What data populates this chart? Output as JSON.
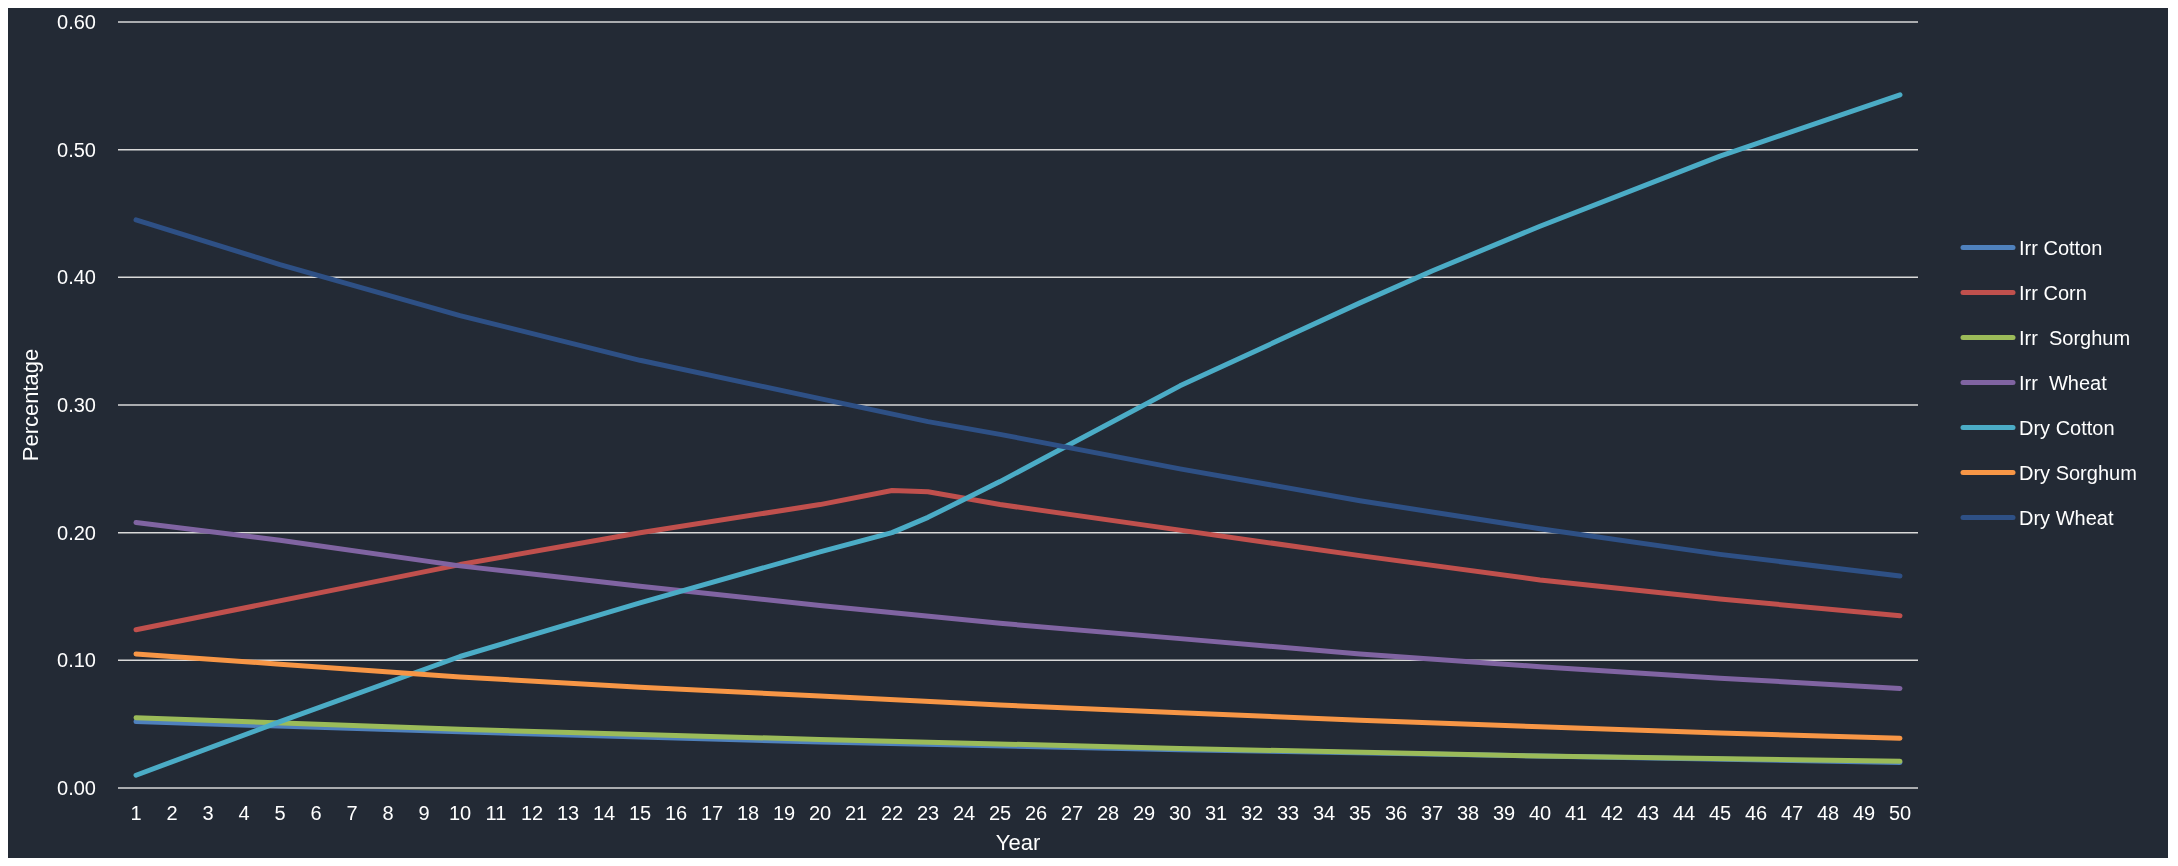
{
  "chart_data": {
    "type": "line",
    "xlabel": "Year",
    "ylabel": "Percentage",
    "xlim": [
      0.5,
      50.5
    ],
    "xticks": [
      1,
      2,
      3,
      4,
      5,
      6,
      7,
      8,
      9,
      10,
      11,
      12,
      13,
      14,
      15,
      16,
      17,
      18,
      19,
      20,
      21,
      22,
      23,
      24,
      25,
      26,
      27,
      28,
      29,
      30,
      31,
      32,
      33,
      34,
      35,
      36,
      37,
      38,
      39,
      40,
      41,
      42,
      43,
      44,
      45,
      46,
      47,
      48,
      49,
      50
    ],
    "ylim": [
      0,
      0.6
    ],
    "yticks": [
      {
        "value": 0,
        "label": "0.00"
      },
      {
        "value": 0.1,
        "label": "0.10"
      },
      {
        "value": 0.2,
        "label": "0.20"
      },
      {
        "value": 0.3,
        "label": "0.30"
      },
      {
        "value": 0.4,
        "label": "0.40"
      },
      {
        "value": 0.5,
        "label": "0.50"
      },
      {
        "value": 0.6,
        "label": "0.60"
      }
    ],
    "grid": "y",
    "legend": "right",
    "marker": "none",
    "line_style": "solid",
    "series": [
      {
        "name": "Irr Cotton",
        "color": "#4f81bd",
        "x": [
          1,
          10,
          20,
          30,
          50
        ],
        "values": [
          0.052,
          0.044,
          0.036,
          0.03,
          0.02
        ]
      },
      {
        "name": "Irr Corn",
        "color": "#c0504d",
        "x": [
          1,
          10,
          15,
          20,
          22,
          23,
          25,
          30,
          35,
          40,
          45,
          50
        ],
        "values": [
          0.124,
          0.175,
          0.2,
          0.222,
          0.233,
          0.232,
          0.222,
          0.202,
          0.182,
          0.163,
          0.148,
          0.135
        ]
      },
      {
        "name": "Irr  Sorghum",
        "color": "#9bbb59",
        "x": [
          1,
          10,
          20,
          30,
          40,
          50
        ],
        "values": [
          0.055,
          0.046,
          0.038,
          0.031,
          0.025,
          0.021
        ]
      },
      {
        "name": "Irr  Wheat",
        "color": "#8064a2",
        "x": [
          1,
          5,
          10,
          15,
          20,
          25,
          30,
          35,
          40,
          45,
          50
        ],
        "values": [
          0.208,
          0.194,
          0.174,
          0.158,
          0.143,
          0.129,
          0.117,
          0.105,
          0.095,
          0.086,
          0.078
        ]
      },
      {
        "name": "Dry Cotton",
        "color": "#4bacc6",
        "x": [
          1,
          5,
          10,
          15,
          20,
          22,
          23,
          25,
          27,
          30,
          35,
          37,
          40,
          45,
          50
        ],
        "values": [
          0.01,
          0.052,
          0.103,
          0.145,
          0.185,
          0.2,
          0.212,
          0.24,
          0.27,
          0.315,
          0.38,
          0.405,
          0.44,
          0.495,
          0.543
        ]
      },
      {
        "name": "Dry Sorghum",
        "color": "#f79646",
        "x": [
          1,
          5,
          10,
          15,
          20,
          25,
          30,
          35,
          40,
          45,
          50
        ],
        "values": [
          0.105,
          0.097,
          0.087,
          0.079,
          0.072,
          0.065,
          0.059,
          0.053,
          0.048,
          0.043,
          0.039
        ]
      },
      {
        "name": "Dry Wheat",
        "color": "#2e5085",
        "x": [
          1,
          5,
          10,
          15,
          20,
          23,
          25,
          30,
          35,
          40,
          45,
          50
        ],
        "values": [
          0.445,
          0.41,
          0.37,
          0.335,
          0.305,
          0.287,
          0.277,
          0.25,
          0.225,
          0.203,
          0.183,
          0.166
        ]
      }
    ]
  }
}
